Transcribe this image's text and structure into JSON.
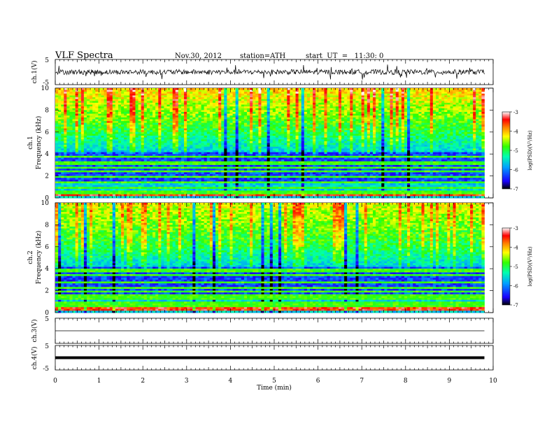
{
  "header": {
    "title": "VLF  Spectra",
    "date": "Nov.30, 2012",
    "station": "station=ATH",
    "start": "start  UT  =   11:30: 0"
  },
  "chart_data": [
    {
      "type": "line",
      "panel": "ch1-waveform",
      "ylabel": "ch.1(V)",
      "ylim": [
        -5,
        5
      ],
      "yticks": [
        "5",
        "-5"
      ],
      "xlim": [
        0,
        10
      ],
      "data_end": 9.8,
      "typical_amplitude_v": 1.0
    },
    {
      "type": "heatmap",
      "panel": "ch1-spectrogram",
      "ylabel_top": "ch.1",
      "ylabel": "Frequency  (kHz)",
      "ylim": [
        0,
        10
      ],
      "yticks": [
        "0",
        "2",
        "4",
        "6",
        "8",
        "10"
      ],
      "xlim": [
        0,
        10
      ],
      "data_end": 9.8,
      "colorbar": {
        "label": "log(PSD)(V²/Hz)",
        "range": [
          -7,
          -3
        ],
        "ticks": [
          "-3",
          "-4",
          "-5",
          "-6",
          "-7"
        ],
        "colors": [
          "#000000",
          "#0000ff",
          "#00ffff",
          "#00ff00",
          "#ffff00",
          "#ff8000",
          "#ff0000",
          "#ffffff"
        ]
      }
    },
    {
      "type": "heatmap",
      "panel": "ch2-spectrogram",
      "ylabel_top": "ch.2",
      "ylabel": "Frequency  (kHz)",
      "ylim": [
        0,
        10
      ],
      "yticks": [
        "0",
        "2",
        "4",
        "6",
        "8",
        "10"
      ],
      "xlim": [
        0,
        10
      ],
      "data_end": 9.8,
      "colorbar": {
        "label": "log(PSD)(V²/Hz)",
        "range": [
          -7,
          -3
        ],
        "ticks": [
          "-3",
          "-4",
          "-5",
          "-6",
          "-7"
        ]
      }
    },
    {
      "type": "line",
      "panel": "ch3-waveform",
      "ylabel": "ch.3(V)",
      "ylim": [
        -5,
        5
      ],
      "yticks": [
        "5"
      ],
      "xlim": [
        0,
        10
      ],
      "data_end": 9.8,
      "level_v": 0
    },
    {
      "type": "line",
      "panel": "ch4-waveform",
      "ylabel": "ch.4(V)",
      "ylim": [
        -5,
        5
      ],
      "yticks": [
        "5",
        "-5"
      ],
      "xlim": [
        0,
        10
      ],
      "data_end": 9.8,
      "level_v": 0
    }
  ],
  "xaxis": {
    "label": "Time  (min)",
    "ticks": [
      "0",
      "1",
      "2",
      "3",
      "4",
      "5",
      "6",
      "7",
      "8",
      "9",
      "10"
    ]
  }
}
